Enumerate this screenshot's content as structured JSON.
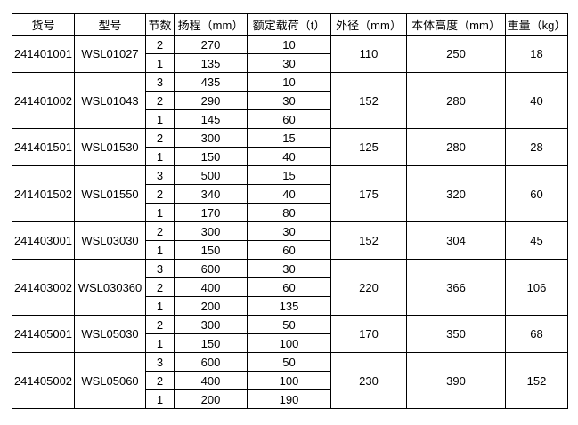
{
  "colors": {
    "border": "#000000",
    "text": "#000000",
    "background": "#ffffff"
  },
  "table": {
    "headers": [
      "货号",
      "型号",
      "节数",
      "扬程（mm）",
      "额定载荷（t）",
      "外径（mm）",
      "本体高度（mm）",
      "重量（kg）"
    ],
    "groups": [
      {
        "item_no": "241401001",
        "model": "WSL01027",
        "rows": [
          {
            "sections": "2",
            "lift": "270",
            "load": "10"
          },
          {
            "sections": "1",
            "lift": "135",
            "load": "30"
          }
        ],
        "outer_diameter": "110",
        "body_height": "250",
        "weight": "18"
      },
      {
        "item_no": "241401002",
        "model": "WSL01043",
        "rows": [
          {
            "sections": "3",
            "lift": "435",
            "load": "10"
          },
          {
            "sections": "2",
            "lift": "290",
            "load": "30"
          },
          {
            "sections": "1",
            "lift": "145",
            "load": "60"
          }
        ],
        "outer_diameter": "152",
        "body_height": "280",
        "weight": "40"
      },
      {
        "item_no": "241401501",
        "model": "WSL01530",
        "rows": [
          {
            "sections": "2",
            "lift": "300",
            "load": "15"
          },
          {
            "sections": "1",
            "lift": "150",
            "load": "40"
          }
        ],
        "outer_diameter": "125",
        "body_height": "280",
        "weight": "28"
      },
      {
        "item_no": "241401502",
        "model": "WSL01550",
        "rows": [
          {
            "sections": "3",
            "lift": "500",
            "load": "15"
          },
          {
            "sections": "2",
            "lift": "340",
            "load": "40"
          },
          {
            "sections": "1",
            "lift": "170",
            "load": "80"
          }
        ],
        "outer_diameter": "175",
        "body_height": "320",
        "weight": "60"
      },
      {
        "item_no": "241403001",
        "model": "WSL03030",
        "rows": [
          {
            "sections": "2",
            "lift": "300",
            "load": "30"
          },
          {
            "sections": "1",
            "lift": "150",
            "load": "60"
          }
        ],
        "outer_diameter": "152",
        "body_height": "304",
        "weight": "45"
      },
      {
        "item_no": "241403002",
        "model": "WSL030360",
        "rows": [
          {
            "sections": "3",
            "lift": "600",
            "load": "30"
          },
          {
            "sections": "2",
            "lift": "400",
            "load": "60"
          },
          {
            "sections": "1",
            "lift": "200",
            "load": "135"
          }
        ],
        "outer_diameter": "220",
        "body_height": "366",
        "weight": "106"
      },
      {
        "item_no": "241405001",
        "model": "WSL05030",
        "rows": [
          {
            "sections": "2",
            "lift": "300",
            "load": "50"
          },
          {
            "sections": "1",
            "lift": "150",
            "load": "100"
          }
        ],
        "outer_diameter": "170",
        "body_height": "350",
        "weight": "68"
      },
      {
        "item_no": "241405002",
        "model": "WSL05060",
        "rows": [
          {
            "sections": "3",
            "lift": "600",
            "load": "50"
          },
          {
            "sections": "2",
            "lift": "400",
            "load": "100"
          },
          {
            "sections": "1",
            "lift": "200",
            "load": "190"
          }
        ],
        "outer_diameter": "230",
        "body_height": "390",
        "weight": "152"
      }
    ]
  }
}
